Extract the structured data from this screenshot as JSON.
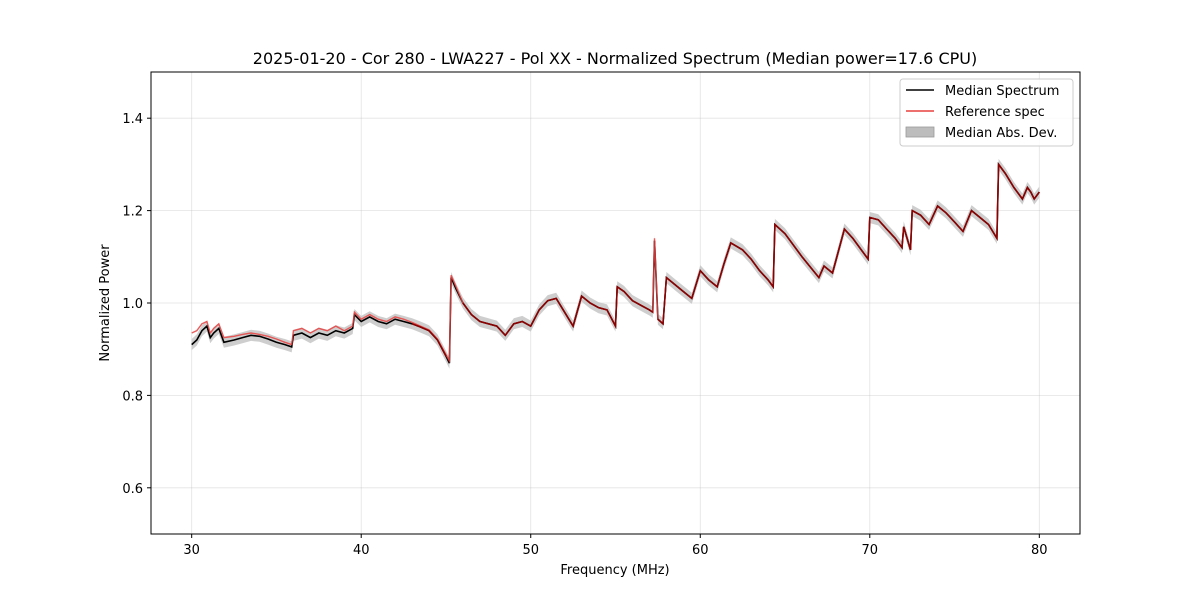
{
  "chart_data": {
    "type": "line",
    "title": "2025-01-20 - Cor 280 - LWA227 - Pol XX - Normalized Spectrum (Median power=17.6 CPU)",
    "xlabel": "Frequency (MHz)",
    "ylabel": "Normalized Power",
    "xlim": [
      27.6,
      82.4
    ],
    "ylim": [
      0.5,
      1.5
    ],
    "xticks": [
      30,
      40,
      50,
      60,
      70,
      80
    ],
    "yticks": [
      0.6,
      0.8,
      1.0,
      1.2,
      1.4
    ],
    "xtick_labels": [
      "30",
      "40",
      "50",
      "60",
      "70",
      "80"
    ],
    "ytick_labels": [
      "0.6",
      "0.8",
      "1.0",
      "1.2",
      "1.4"
    ],
    "grid": true,
    "legend_position": "top-right",
    "legend": [
      "Median Spectrum",
      "Reference spec",
      "Median Abs. Dev."
    ],
    "colors": {
      "median": "#000000",
      "reference": "#e8413f",
      "mad": "#bdbdbd",
      "overlap": "#8b0000"
    },
    "mad_halfwidth": 0.012,
    "series": [
      {
        "name": "Median Spectrum",
        "x": [
          30.0,
          30.3,
          30.6,
          30.9,
          31.1,
          31.3,
          31.6,
          31.9,
          32.5,
          33.0,
          33.5,
          34.0,
          34.5,
          35.0,
          35.5,
          35.9,
          36.0,
          36.5,
          37.0,
          37.5,
          38.0,
          38.5,
          39.0,
          39.5,
          39.6,
          40.0,
          40.5,
          41.0,
          41.5,
          42.0,
          42.5,
          43.0,
          43.5,
          44.0,
          44.5,
          45.0,
          45.2,
          45.3,
          45.6,
          46.0,
          46.5,
          47.0,
          47.5,
          48.0,
          48.5,
          49.0,
          49.5,
          50.0,
          50.5,
          51.0,
          51.5,
          52.0,
          52.5,
          53.0,
          53.5,
          54.0,
          54.5,
          55.0,
          55.1,
          55.5,
          56.0,
          56.5,
          57.0,
          57.2,
          57.3,
          57.5,
          57.8,
          58.0,
          58.5,
          59.0,
          59.5,
          60.0,
          60.5,
          61.0,
          61.4,
          61.8,
          62.5,
          63.0,
          63.5,
          64.0,
          64.3,
          64.4,
          65.0,
          66.0,
          67.0,
          67.3,
          67.8,
          68.5,
          69.0,
          69.5,
          69.9,
          70.0,
          70.5,
          71.0,
          71.5,
          71.9,
          72.0,
          72.4,
          72.5,
          73.0,
          73.5,
          74.0,
          74.5,
          75.0,
          75.5,
          76.0,
          76.5,
          77.0,
          77.5,
          77.6,
          78.0,
          78.5,
          79.0,
          79.3,
          79.5,
          79.7,
          80.0
        ],
        "y": [
          0.91,
          0.92,
          0.94,
          0.95,
          0.925,
          0.935,
          0.945,
          0.915,
          0.92,
          0.925,
          0.93,
          0.928,
          0.922,
          0.915,
          0.91,
          0.905,
          0.93,
          0.935,
          0.925,
          0.935,
          0.93,
          0.94,
          0.935,
          0.945,
          0.975,
          0.96,
          0.97,
          0.96,
          0.955,
          0.965,
          0.96,
          0.955,
          0.948,
          0.94,
          0.92,
          0.885,
          0.87,
          1.055,
          1.03,
          1.0,
          0.975,
          0.96,
          0.955,
          0.95,
          0.93,
          0.955,
          0.96,
          0.95,
          0.985,
          1.005,
          1.01,
          0.98,
          0.95,
          1.015,
          1.0,
          0.99,
          0.985,
          0.95,
          1.035,
          1.025,
          1.005,
          0.995,
          0.985,
          0.98,
          1.135,
          0.965,
          0.955,
          1.055,
          1.04,
          1.025,
          1.01,
          1.07,
          1.05,
          1.035,
          1.085,
          1.13,
          1.115,
          1.095,
          1.07,
          1.05,
          1.035,
          1.17,
          1.15,
          1.1,
          1.055,
          1.08,
          1.065,
          1.16,
          1.14,
          1.115,
          1.095,
          1.185,
          1.18,
          1.16,
          1.14,
          1.12,
          1.165,
          1.115,
          1.2,
          1.19,
          1.17,
          1.21,
          1.195,
          1.175,
          1.155,
          1.2,
          1.185,
          1.17,
          1.14,
          1.3,
          1.28,
          1.25,
          1.225,
          1.25,
          1.24,
          1.225,
          1.24
        ]
      },
      {
        "name": "Reference spec",
        "x": [
          30.0,
          30.3,
          30.6,
          30.9,
          31.1,
          31.3,
          31.6,
          31.9,
          32.5,
          33.0,
          33.5,
          34.0,
          34.5,
          35.0,
          35.5,
          35.9,
          36.0,
          36.5,
          37.0,
          37.5,
          38.0,
          38.5,
          39.0,
          39.5,
          39.6,
          40.0,
          40.5,
          41.0,
          41.5,
          42.0,
          42.5,
          43.0,
          43.5,
          44.0,
          44.5,
          45.0,
          45.2,
          45.3,
          45.6,
          46.0,
          46.5,
          47.0,
          47.5,
          48.0,
          48.5,
          49.0,
          49.5,
          50.0,
          50.5,
          51.0,
          51.5,
          52.0,
          52.5,
          53.0,
          53.5,
          54.0,
          54.5,
          55.0,
          55.1,
          55.5,
          56.0,
          56.5,
          57.0,
          57.2,
          57.3,
          57.5,
          57.8,
          58.0,
          58.5,
          59.0,
          59.5,
          60.0,
          60.5,
          61.0,
          61.4,
          61.8,
          62.5,
          63.0,
          63.5,
          64.0,
          64.3,
          64.4,
          65.0,
          66.0,
          67.0,
          67.3,
          67.8,
          68.5,
          69.0,
          69.5,
          69.9,
          70.0,
          70.5,
          71.0,
          71.5,
          71.9,
          72.0,
          72.4,
          72.5,
          73.0,
          73.5,
          74.0,
          74.5,
          75.0,
          75.5,
          76.0,
          76.5,
          77.0,
          77.5,
          77.6,
          78.0,
          78.5,
          79.0,
          79.3,
          79.5,
          79.7,
          80.0
        ],
        "y": [
          0.935,
          0.94,
          0.955,
          0.96,
          0.935,
          0.945,
          0.955,
          0.925,
          0.928,
          0.932,
          0.935,
          0.932,
          0.928,
          0.922,
          0.915,
          0.91,
          0.94,
          0.945,
          0.935,
          0.945,
          0.94,
          0.95,
          0.94,
          0.95,
          0.98,
          0.965,
          0.975,
          0.965,
          0.96,
          0.97,
          0.965,
          0.958,
          0.95,
          0.942,
          0.922,
          0.888,
          0.875,
          1.06,
          1.035,
          1.0,
          0.975,
          0.96,
          0.955,
          0.95,
          0.93,
          0.955,
          0.96,
          0.95,
          0.985,
          1.005,
          1.01,
          0.98,
          0.95,
          1.015,
          1.0,
          0.99,
          0.985,
          0.95,
          1.035,
          1.025,
          1.005,
          0.995,
          0.985,
          0.98,
          1.14,
          0.965,
          0.955,
          1.055,
          1.04,
          1.025,
          1.01,
          1.07,
          1.05,
          1.035,
          1.085,
          1.13,
          1.115,
          1.095,
          1.07,
          1.05,
          1.035,
          1.17,
          1.15,
          1.1,
          1.055,
          1.08,
          1.065,
          1.16,
          1.14,
          1.115,
          1.095,
          1.185,
          1.18,
          1.16,
          1.14,
          1.12,
          1.165,
          1.115,
          1.2,
          1.19,
          1.17,
          1.21,
          1.195,
          1.175,
          1.155,
          1.2,
          1.185,
          1.17,
          1.14,
          1.3,
          1.28,
          1.25,
          1.225,
          1.25,
          1.24,
          1.225,
          1.24
        ]
      }
    ]
  }
}
